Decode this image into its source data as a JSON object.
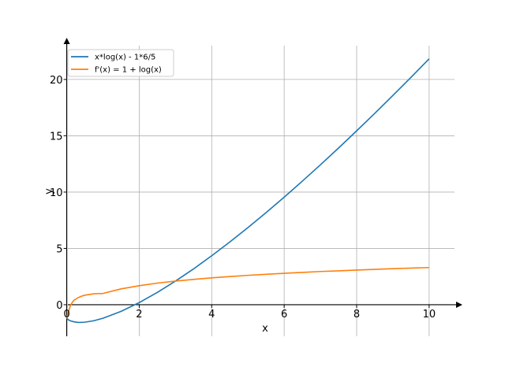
{
  "chart_data": {
    "type": "line",
    "title": "",
    "xlabel": "x",
    "ylabel": "y",
    "xlim": [
      -0.1,
      10.7
    ],
    "ylim": [
      -2.8,
      23.0
    ],
    "grid": true,
    "legend_position": "top-left",
    "x_ticks": [
      0,
      2,
      4,
      6,
      8,
      10
    ],
    "y_ticks": [
      0,
      5,
      10,
      15,
      20
    ],
    "series": [
      {
        "name": "x*log(x) - 1*6/5",
        "color": "#1f77b4",
        "x": [
          0.0,
          0.05,
          0.1,
          0.2,
          0.3,
          0.368,
          0.5,
          0.75,
          1,
          1.5,
          2,
          2.5,
          3,
          3.5,
          4,
          4.5,
          5,
          5.5,
          6,
          6.5,
          7,
          7.5,
          8,
          8.5,
          9,
          9.5,
          10
        ],
        "y": [
          -1.2,
          -1.35,
          -1.43,
          -1.52,
          -1.56,
          -1.57,
          -1.55,
          -1.42,
          -1.2,
          -0.59,
          0.19,
          1.09,
          2.1,
          3.18,
          4.35,
          5.57,
          6.85,
          8.18,
          9.55,
          10.97,
          12.42,
          13.91,
          15.44,
          16.99,
          18.58,
          20.19,
          21.83
        ]
      },
      {
        "name": "f'(x) = 1 + log(x)",
        "color": "#ff7f0e",
        "x": [
          0.0,
          0.05,
          0.1,
          0.15,
          0.2,
          0.3,
          0.4,
          0.5,
          0.75,
          1,
          1.5,
          2,
          2.5,
          3,
          3.5,
          4,
          4.5,
          5,
          5.5,
          6,
          6.5,
          7,
          7.5,
          8,
          8.5,
          9,
          9.5,
          10
        ],
        "y": [
          -1.2,
          -0.6,
          -0.1,
          0.2,
          0.4,
          0.6,
          0.75,
          0.85,
          0.97,
          1.0,
          1.41,
          1.69,
          1.92,
          2.1,
          2.25,
          2.39,
          2.5,
          2.61,
          2.7,
          2.79,
          2.87,
          2.95,
          3.01,
          3.08,
          3.14,
          3.2,
          3.25,
          3.3
        ]
      }
    ]
  }
}
